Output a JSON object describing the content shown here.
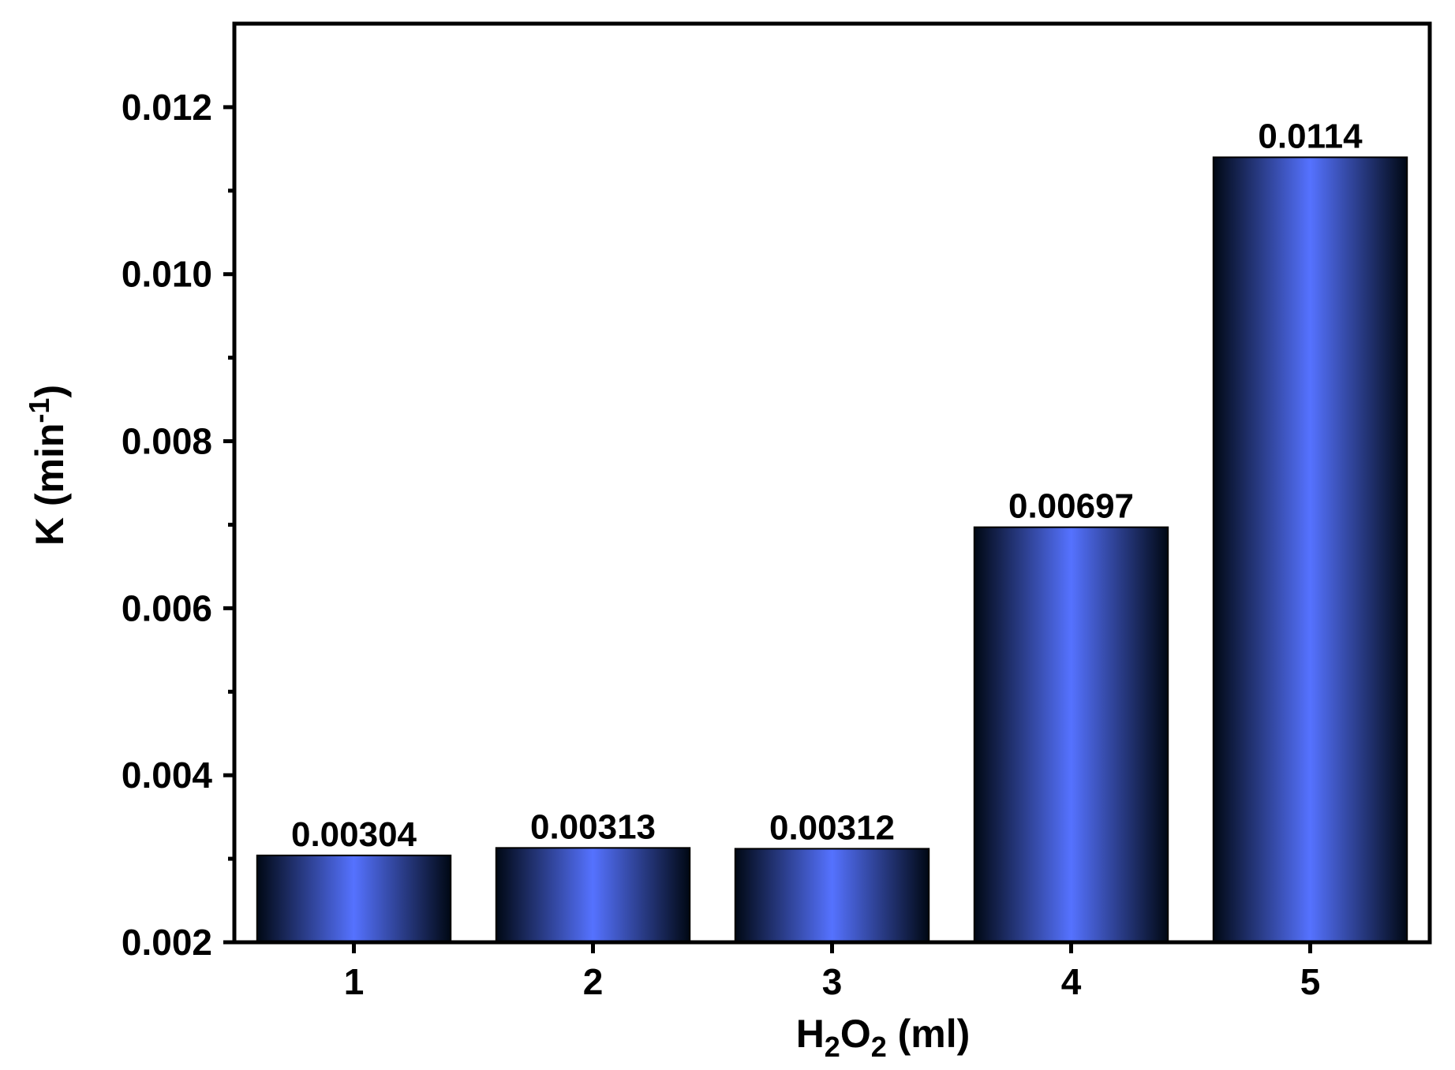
{
  "chart_data": {
    "type": "bar",
    "categories": [
      "1",
      "2",
      "3",
      "4",
      "5"
    ],
    "values": [
      0.00304,
      0.00313,
      0.00312,
      0.00697,
      0.0114
    ],
    "data_labels": [
      "0.00304",
      "0.00313",
      "0.00312",
      "0.00697",
      "0.0114"
    ],
    "xlabel": {
      "base": "H",
      "sub1": "2",
      "mid": "O",
      "sub2": "2",
      "rest": " (ml)"
    },
    "ylabel": {
      "main": "K (min",
      "sup": "-1",
      "close": ")"
    },
    "ylim": [
      0.002,
      0.013
    ],
    "yticks": [
      0.002,
      0.004,
      0.006,
      0.008,
      0.01,
      0.012
    ],
    "ytick_labels": [
      "0.002",
      "0.004",
      "0.006",
      "0.008",
      "0.010",
      "0.012"
    ],
    "grid": false,
    "legend": "none",
    "colors": {
      "bar_center": "#5572ff",
      "bar_edge": "#000814",
      "axis": "#000000"
    }
  }
}
